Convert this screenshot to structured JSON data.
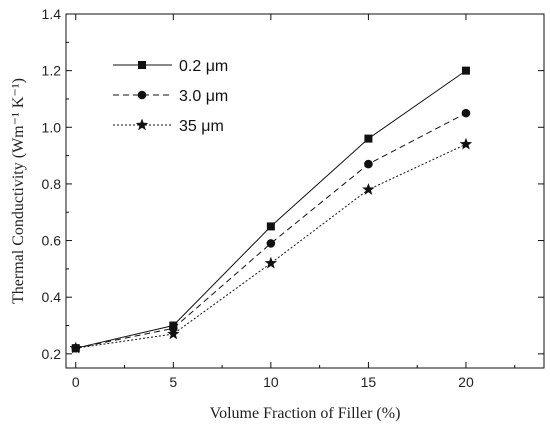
{
  "chart_data": {
    "type": "line",
    "xlabel": "Volume Fraction of Filler (%)",
    "ylabel": "Thermal Conductivity (Wm⁻¹ K⁻¹)",
    "xlim": [
      -0.5,
      24
    ],
    "ylim": [
      0.15,
      1.4
    ],
    "xticks": [
      0,
      5,
      10,
      15,
      20
    ],
    "yticks": [
      0.2,
      0.4,
      0.6,
      0.8,
      1.0,
      1.2,
      1.4
    ],
    "xtick_labels": [
      "0",
      "5",
      "10",
      "15",
      "20"
    ],
    "ytick_labels": [
      "0.2",
      "0.4",
      "0.6",
      "0.8",
      "1.0",
      "1.2",
      "1.4"
    ],
    "x": [
      0,
      5,
      10,
      15,
      20
    ],
    "grid": false,
    "legend_position": "top-left",
    "series": [
      {
        "name": "0.2 μm",
        "values": [
          0.22,
          0.3,
          0.65,
          0.96,
          1.2
        ],
        "marker": "square",
        "line": "solid"
      },
      {
        "name": "3.0 μm",
        "values": [
          0.22,
          0.29,
          0.59,
          0.87,
          1.05
        ],
        "marker": "circle",
        "line": "dashed"
      },
      {
        "name": "35 μm",
        "values": [
          0.22,
          0.27,
          0.52,
          0.78,
          0.94
        ],
        "marker": "star",
        "line": "dotted"
      }
    ]
  }
}
